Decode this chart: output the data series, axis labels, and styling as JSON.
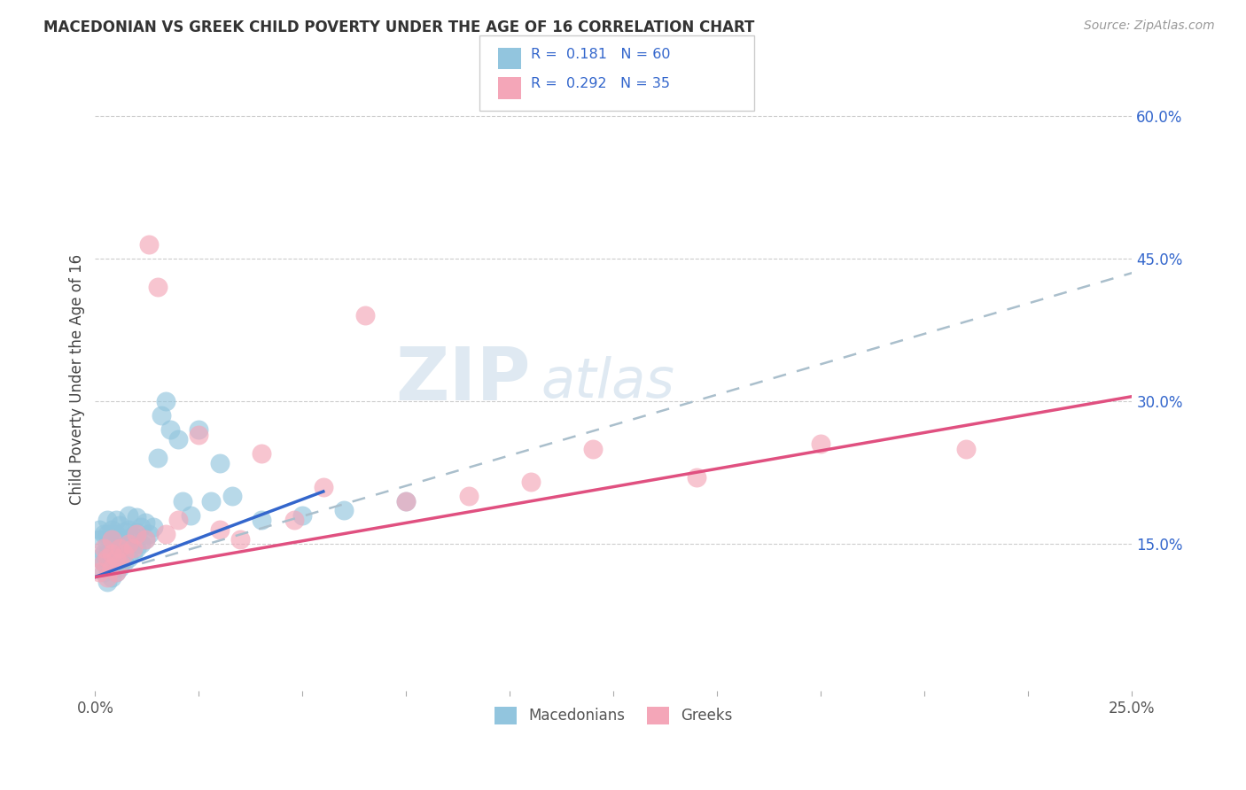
{
  "title": "MACEDONIAN VS GREEK CHILD POVERTY UNDER THE AGE OF 16 CORRELATION CHART",
  "source": "Source: ZipAtlas.com",
  "ylabel": "Child Poverty Under the Age of 16",
  "xlim": [
    0.0,
    0.25
  ],
  "ylim": [
    -0.005,
    0.65
  ],
  "xtick_left_label": "0.0%",
  "xtick_right_label": "25.0%",
  "yticks_right": [
    0.15,
    0.3,
    0.45,
    0.6
  ],
  "ytick_labels_right": [
    "15.0%",
    "30.0%",
    "45.0%",
    "60.0%"
  ],
  "legend_R1": "0.181",
  "legend_N1": "60",
  "legend_R2": "0.292",
  "legend_N2": "35",
  "legend_label1": "Macedonians",
  "legend_label2": "Greeks",
  "blue_color": "#92c5de",
  "pink_color": "#f4a6b8",
  "blue_line_color": "#3366cc",
  "pink_line_color": "#e05080",
  "dash_line_color": "#aabfcc",
  "watermark_color": "#c5d8e8",
  "background_color": "#ffffff",
  "grid_color": "#cccccc",
  "mac_line_x0": 0.0,
  "mac_line_y0": 0.115,
  "mac_line_x1": 0.055,
  "mac_line_y1": 0.205,
  "dash_line_x0": 0.0,
  "dash_line_y0": 0.115,
  "dash_line_x1": 0.25,
  "dash_line_y1": 0.435,
  "grk_line_x0": 0.0,
  "grk_line_y0": 0.115,
  "grk_line_x1": 0.25,
  "grk_line_y1": 0.305,
  "macedonian_x": [
    0.001,
    0.001,
    0.001,
    0.002,
    0.002,
    0.002,
    0.002,
    0.003,
    0.003,
    0.003,
    0.003,
    0.003,
    0.003,
    0.004,
    0.004,
    0.004,
    0.004,
    0.004,
    0.005,
    0.005,
    0.005,
    0.005,
    0.005,
    0.006,
    0.006,
    0.006,
    0.006,
    0.007,
    0.007,
    0.007,
    0.008,
    0.008,
    0.008,
    0.008,
    0.009,
    0.009,
    0.01,
    0.01,
    0.01,
    0.011,
    0.011,
    0.012,
    0.012,
    0.013,
    0.014,
    0.015,
    0.016,
    0.017,
    0.018,
    0.02,
    0.021,
    0.023,
    0.025,
    0.028,
    0.03,
    0.033,
    0.04,
    0.05,
    0.06,
    0.075
  ],
  "macedonian_y": [
    0.135,
    0.155,
    0.165,
    0.12,
    0.13,
    0.14,
    0.16,
    0.11,
    0.125,
    0.14,
    0.15,
    0.16,
    0.175,
    0.115,
    0.125,
    0.135,
    0.15,
    0.165,
    0.12,
    0.13,
    0.145,
    0.16,
    0.175,
    0.125,
    0.14,
    0.155,
    0.17,
    0.13,
    0.148,
    0.163,
    0.135,
    0.15,
    0.165,
    0.18,
    0.14,
    0.158,
    0.145,
    0.162,
    0.178,
    0.15,
    0.168,
    0.155,
    0.172,
    0.16,
    0.168,
    0.24,
    0.285,
    0.3,
    0.27,
    0.26,
    0.195,
    0.18,
    0.27,
    0.195,
    0.235,
    0.2,
    0.175,
    0.18,
    0.185,
    0.195
  ],
  "greek_x": [
    0.001,
    0.002,
    0.002,
    0.003,
    0.003,
    0.004,
    0.004,
    0.004,
    0.005,
    0.005,
    0.006,
    0.006,
    0.007,
    0.008,
    0.009,
    0.01,
    0.012,
    0.013,
    0.015,
    0.017,
    0.02,
    0.025,
    0.03,
    0.035,
    0.04,
    0.048,
    0.055,
    0.065,
    0.075,
    0.09,
    0.105,
    0.12,
    0.145,
    0.175,
    0.21
  ],
  "greek_y": [
    0.12,
    0.13,
    0.145,
    0.115,
    0.135,
    0.125,
    0.14,
    0.155,
    0.12,
    0.135,
    0.13,
    0.145,
    0.14,
    0.15,
    0.145,
    0.16,
    0.155,
    0.465,
    0.42,
    0.16,
    0.175,
    0.265,
    0.165,
    0.155,
    0.245,
    0.175,
    0.21,
    0.39,
    0.195,
    0.2,
    0.215,
    0.25,
    0.22,
    0.255,
    0.25
  ]
}
